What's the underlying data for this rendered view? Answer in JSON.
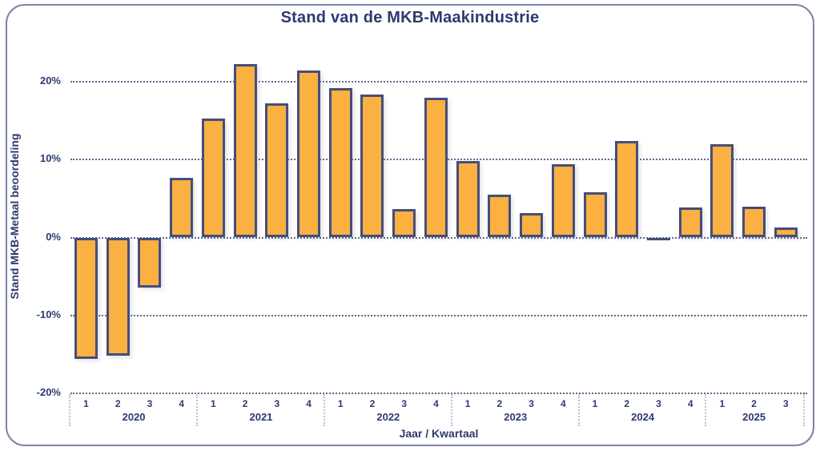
{
  "title": "Stand van de MKB-Maakindustrie",
  "y_axis": {
    "label": "Stand MKB-Metaal beoordeling",
    "tick_values": [
      20,
      10,
      0,
      -10,
      -20
    ],
    "tick_labels": [
      "20%",
      "10%",
      "0%",
      "-10%",
      "-20%"
    ]
  },
  "x_axis": {
    "label": "Jaar / Kwartaal"
  },
  "colors": {
    "bar_fill": "#FBB042",
    "bar_border": "#454E7B",
    "text": "#2D3A6F",
    "grid": "#454E7B",
    "frame": "#7B84A8"
  },
  "chart_data": {
    "type": "bar",
    "title": "Stand van de MKB-Maakindustrie",
    "xlabel": "Jaar / Kwartaal",
    "ylabel": "Stand MKB-Metaal beoordeling",
    "unit": "%",
    "ylim": [
      -20,
      24
    ],
    "grid": "dotted-horizontal",
    "legend": "none",
    "groups": [
      {
        "year": "2020",
        "quarters": [
          "1",
          "2",
          "3",
          "4"
        ],
        "values": [
          -15.6,
          -15.1,
          -6.4,
          7.6
        ]
      },
      {
        "year": "2021",
        "quarters": [
          "1",
          "2",
          "3",
          "4"
        ],
        "values": [
          15.2,
          22.2,
          17.2,
          21.4
        ]
      },
      {
        "year": "2022",
        "quarters": [
          "1",
          "2",
          "3",
          "4"
        ],
        "values": [
          19.1,
          18.3,
          3.6,
          17.9
        ]
      },
      {
        "year": "2023",
        "quarters": [
          "1",
          "2",
          "3",
          "4"
        ],
        "values": [
          9.8,
          5.5,
          3.1,
          9.4
        ]
      },
      {
        "year": "2024",
        "quarters": [
          "1",
          "2",
          "3",
          "4"
        ],
        "values": [
          5.8,
          12.4,
          -0.1,
          3.9
        ]
      },
      {
        "year": "2025",
        "quarters": [
          "1",
          "2",
          "3"
        ],
        "values": [
          12.0,
          4.0,
          1.3
        ]
      }
    ]
  }
}
